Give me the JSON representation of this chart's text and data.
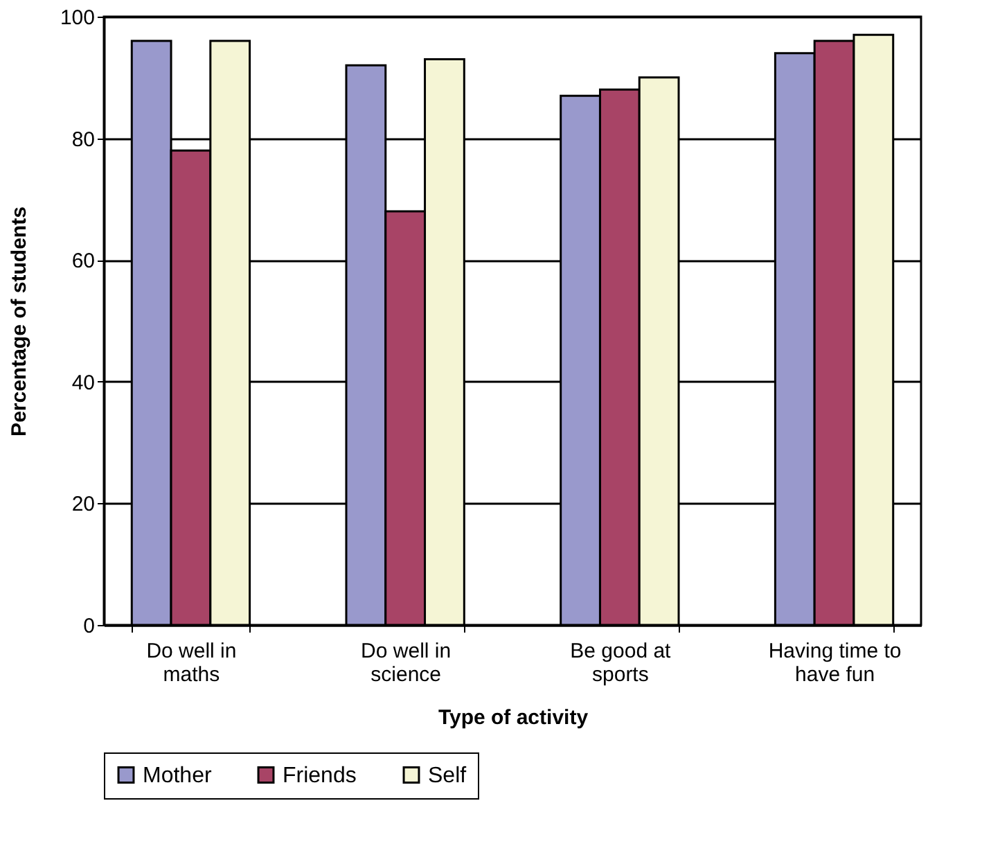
{
  "chart_data": {
    "type": "bar",
    "xlabel": "Type of activity",
    "ylabel": "Percentage of students",
    "categories": [
      "Do well in maths",
      "Do well in science",
      "Be good at sports",
      "Having time to have fun"
    ],
    "series": [
      {
        "name": "Mother",
        "color": "#9999cc",
        "values": [
          96,
          92,
          87,
          94
        ]
      },
      {
        "name": "Friends",
        "color": "#a84466",
        "values": [
          78,
          68,
          88,
          96
        ]
      },
      {
        "name": "Self",
        "color": "#f5f5d5",
        "values": [
          96,
          93,
          90,
          97
        ]
      }
    ],
    "ylim": [
      0,
      100
    ],
    "yticks": [
      0,
      20,
      40,
      60,
      80,
      100
    ],
    "grid": "y",
    "legend": "bottom"
  }
}
